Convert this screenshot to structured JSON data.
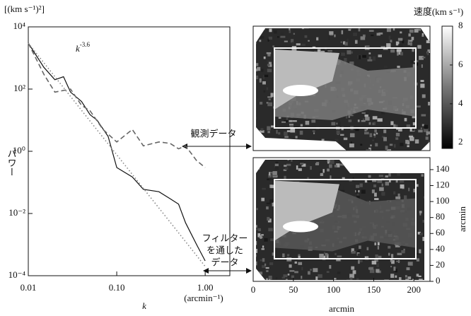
{
  "chart_data": [
    {
      "type": "line",
      "y_unit": "[(km s⁻¹)²]",
      "ylabel": "パワー",
      "xlabel": "k",
      "x_unit": "(arcmin⁻¹)",
      "xscale": "log",
      "yscale": "log",
      "xlim": [
        0.01,
        1.9
      ],
      "ylim": [
        0.0001,
        10000
      ],
      "xticks": [
        0.01,
        {
          "value": 0.1,
          "label": "0.10"
        },
        {
          "value": 1,
          "label": "1.00"
        }
      ],
      "yticks": [
        {
          "value": 10000,
          "label": "10⁴"
        },
        {
          "value": 100,
          "label": "10²"
        },
        {
          "value": 1,
          "label": "10⁰"
        },
        {
          "value": 0.01,
          "label": "10⁻²"
        },
        {
          "value": 0.0001,
          "label": "10⁻⁴"
        }
      ],
      "series": [
        {
          "color": "#111111",
          "style": "solid",
          "x": [
            0.01,
            0.015,
            0.02,
            0.025,
            0.03,
            0.04,
            0.05,
            0.06,
            0.08,
            0.1,
            0.15,
            0.2,
            0.3,
            0.4,
            0.5,
            0.6,
            0.8,
            1.0
          ],
          "values": [
            3000,
            500,
            200,
            250,
            80,
            40,
            15,
            10,
            3,
            0.3,
            0.15,
            0.06,
            0.05,
            0.03,
            0.02,
            0.005,
            0.001,
            0.0003
          ]
        },
        {
          "color": "#666666",
          "style": "dashed",
          "x": [
            0.01,
            0.015,
            0.02,
            0.03,
            0.04,
            0.05,
            0.07,
            0.1,
            0.15,
            0.2,
            0.3,
            0.4,
            0.5,
            0.6,
            0.8,
            1.0
          ],
          "values": [
            3000,
            300,
            80,
            100,
            30,
            20,
            5,
            2,
            5,
            1.5,
            2,
            1.8,
            1.2,
            1.5,
            0.5,
            0.3
          ]
        },
        {
          "color": "#888888",
          "style": "dotted",
          "x": [
            0.01,
            1.0
          ],
          "values": [
            3000,
            0.0002
          ]
        }
      ],
      "annotations": [
        {
          "text": "k",
          "superscript": "-3.6"
        },
        {
          "lines": [
            "観測データ"
          ]
        },
        {
          "lines": [
            "フィルター",
            "を通した",
            "データ"
          ]
        }
      ]
    },
    {
      "type": "image",
      "colorbar_title": "速度(km s⁻¹)",
      "clim": [
        1.7,
        8
      ],
      "colorbar_ticks": [
        2,
        4,
        6,
        8
      ],
      "xlabel": "arcmin",
      "ylabel": "arcmin",
      "xlim": [
        0,
        220
      ],
      "xticks": [
        0,
        50,
        100,
        150,
        200
      ],
      "ylim": [
        0,
        155
      ],
      "yticks": [
        0,
        20,
        40,
        60,
        80,
        100,
        120,
        140
      ]
    }
  ]
}
